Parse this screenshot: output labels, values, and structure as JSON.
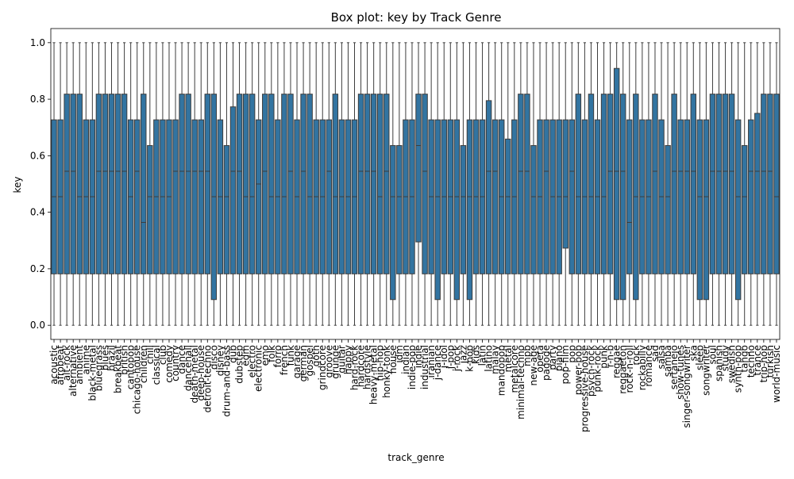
{
  "chart_data": {
    "type": "box",
    "title": "Box plot: key by Track Genre",
    "xlabel": "track_genre",
    "ylabel": "key",
    "ylim": [
      -0.05,
      1.05
    ],
    "yticks": [
      0.0,
      0.2,
      0.4,
      0.6,
      0.8,
      1.0
    ],
    "ytick_labels": [
      "0.0",
      "0.2",
      "0.4",
      "0.6",
      "0.8",
      "1.0"
    ],
    "box_color": "#3274a1",
    "edge_color": "#3d3d3d",
    "categories": [
      "acoustic",
      "afrobeat",
      "alt-rock",
      "alternative",
      "ambient",
      "anime",
      "black-metal",
      "bluegrass",
      "blues",
      "brazil",
      "breakbeat",
      "british",
      "cantopop",
      "chicago-house",
      "children",
      "chill",
      "classical",
      "club",
      "comedy",
      "country",
      "dance",
      "dancehall",
      "death-metal",
      "deep-house",
      "detroit-techno",
      "disco",
      "disney",
      "drum-and-bass",
      "dub",
      "dubstep",
      "edm",
      "electro",
      "electronic",
      "emo",
      "folk",
      "forro",
      "french",
      "funk",
      "garage",
      "german",
      "gospel",
      "goth",
      "grindcore",
      "groove",
      "grunge",
      "guitar",
      "happy",
      "hard-rock",
      "hardcore",
      "hardstyle",
      "heavy-metal",
      "hip-hop",
      "honky-tonk",
      "house",
      "idm",
      "indian",
      "indie-pop",
      "indie",
      "industrial",
      "iranian",
      "j-dance",
      "j-idol",
      "j-pop",
      "j-rock",
      "jazz",
      "k-pop",
      "kids",
      "latin",
      "latino",
      "malay",
      "mandopop",
      "metal",
      "metalcore",
      "minimal-techno",
      "mpb",
      "new-age",
      "opera",
      "pagode",
      "party",
      "piano",
      "pop-film",
      "pop",
      "power-pop",
      "progressive-house",
      "psych-rock",
      "punk-rock",
      "punk",
      "r-n-b",
      "reggae",
      "reggaeton",
      "rock-n-roll",
      "rock",
      "rockabilly",
      "romance",
      "sad",
      "salsa",
      "samba",
      "sertanejo",
      "show-tunes",
      "singer-songwriter",
      "ska",
      "sleep",
      "songwriter",
      "soul",
      "spanish",
      "study",
      "swedish",
      "synth-pop",
      "tango",
      "techno",
      "trance",
      "trip-hop",
      "turkish",
      "world-music"
    ],
    "q1": [
      0.182,
      0.182,
      0.182,
      0.182,
      0.182,
      0.182,
      0.182,
      0.182,
      0.182,
      0.182,
      0.182,
      0.182,
      0.182,
      0.182,
      0.182,
      0.182,
      0.182,
      0.182,
      0.182,
      0.182,
      0.182,
      0.182,
      0.182,
      0.182,
      0.182,
      0.091,
      0.182,
      0.182,
      0.182,
      0.182,
      0.182,
      0.182,
      0.182,
      0.182,
      0.182,
      0.182,
      0.182,
      0.182,
      0.182,
      0.182,
      0.182,
      0.182,
      0.182,
      0.182,
      0.182,
      0.182,
      0.182,
      0.182,
      0.182,
      0.182,
      0.182,
      0.182,
      0.182,
      0.091,
      0.182,
      0.182,
      0.182,
      0.295,
      0.182,
      0.182,
      0.091,
      0.182,
      0.182,
      0.091,
      0.182,
      0.091,
      0.182,
      0.182,
      0.182,
      0.182,
      0.182,
      0.182,
      0.182,
      0.182,
      0.182,
      0.182,
      0.182,
      0.182,
      0.182,
      0.182,
      0.273,
      0.182,
      0.182,
      0.182,
      0.182,
      0.182,
      0.182,
      0.182,
      0.091,
      0.091,
      0.182,
      0.091,
      0.182,
      0.182,
      0.182,
      0.182,
      0.182,
      0.182,
      0.182,
      0.182,
      0.182,
      0.091,
      0.091,
      0.182,
      0.182,
      0.182,
      0.182,
      0.091,
      0.182,
      0.182,
      0.182,
      0.182,
      0.182,
      0.182
    ],
    "median": [
      0.455,
      0.455,
      0.545,
      0.545,
      0.455,
      0.455,
      0.455,
      0.545,
      0.545,
      0.545,
      0.545,
      0.545,
      0.455,
      0.545,
      0.364,
      0.455,
      0.455,
      0.455,
      0.455,
      0.545,
      0.545,
      0.545,
      0.545,
      0.545,
      0.545,
      0.455,
      0.455,
      0.455,
      0.545,
      0.545,
      0.455,
      0.455,
      0.5,
      0.545,
      0.455,
      0.455,
      0.455,
      0.545,
      0.455,
      0.545,
      0.455,
      0.455,
      0.455,
      0.545,
      0.455,
      0.455,
      0.455,
      0.455,
      0.545,
      0.545,
      0.545,
      0.455,
      0.545,
      0.455,
      0.455,
      0.455,
      0.455,
      0.636,
      0.545,
      0.455,
      0.455,
      0.455,
      0.455,
      0.455,
      0.455,
      0.455,
      0.455,
      0.455,
      0.545,
      0.545,
      0.455,
      0.455,
      0.455,
      0.545,
      0.545,
      0.455,
      0.455,
      0.545,
      0.455,
      0.455,
      0.455,
      0.545,
      0.455,
      0.455,
      0.455,
      0.455,
      0.455,
      0.545,
      0.545,
      0.545,
      0.364,
      0.455,
      0.455,
      0.455,
      0.545,
      0.455,
      0.455,
      0.545,
      0.545,
      0.545,
      0.545,
      0.455,
      0.455,
      0.545,
      0.545,
      0.545,
      0.545,
      0.455,
      0.455,
      0.545,
      0.545,
      0.545,
      0.545,
      0.455
    ],
    "q3": [
      0.727,
      0.727,
      0.818,
      0.818,
      0.818,
      0.727,
      0.727,
      0.818,
      0.818,
      0.818,
      0.818,
      0.818,
      0.727,
      0.727,
      0.818,
      0.636,
      0.727,
      0.727,
      0.727,
      0.727,
      0.818,
      0.818,
      0.727,
      0.727,
      0.818,
      0.818,
      0.727,
      0.636,
      0.773,
      0.818,
      0.818,
      0.818,
      0.727,
      0.818,
      0.818,
      0.727,
      0.818,
      0.818,
      0.727,
      0.818,
      0.818,
      0.727,
      0.727,
      0.727,
      0.818,
      0.727,
      0.727,
      0.727,
      0.818,
      0.818,
      0.818,
      0.818,
      0.818,
      0.636,
      0.636,
      0.727,
      0.727,
      0.818,
      0.818,
      0.727,
      0.727,
      0.727,
      0.727,
      0.727,
      0.636,
      0.727,
      0.727,
      0.727,
      0.795,
      0.727,
      0.727,
      0.659,
      0.727,
      0.818,
      0.818,
      0.636,
      0.727,
      0.727,
      0.727,
      0.727,
      0.727,
      0.727,
      0.818,
      0.727,
      0.818,
      0.727,
      0.818,
      0.818,
      0.909,
      0.818,
      0.727,
      0.818,
      0.727,
      0.727,
      0.818,
      0.727,
      0.636,
      0.818,
      0.727,
      0.727,
      0.818,
      0.727,
      0.727,
      0.818,
      0.818,
      0.818,
      0.818,
      0.727,
      0.636,
      0.727,
      0.75,
      0.818,
      0.818,
      0.818
    ],
    "whisker_low": 0.0,
    "whisker_high": 1.0,
    "grid": false,
    "legend": "none"
  }
}
